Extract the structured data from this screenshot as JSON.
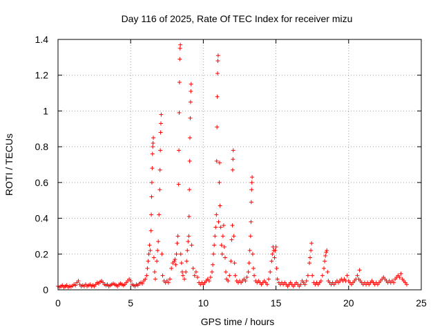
{
  "chart_data": {
    "type": "scatter",
    "title": "Day 116 of 2025, Rate Of TEC Index for receiver mizu",
    "xlabel": "GPS time / hours",
    "ylabel": "ROTI / TECUs",
    "xlim": [
      0,
      25
    ],
    "ylim": [
      0,
      1.4
    ],
    "xticks": [
      0,
      5,
      10,
      15,
      20,
      25
    ],
    "xtick_labels": [
      "0",
      "5",
      "10",
      "15",
      "20",
      "25"
    ],
    "yticks": [
      0,
      0.2,
      0.4,
      0.6,
      0.8,
      1,
      1.2,
      1.4
    ],
    "ytick_labels": [
      "0",
      "0.2",
      "0.4",
      "0.6",
      "0.8",
      "1",
      "1.2",
      "1.4"
    ],
    "grid": true,
    "marker": "plus",
    "color": "#ff0000",
    "series": [
      {
        "name": "ROTI",
        "points": [
          [
            0.0,
            0.02
          ],
          [
            0.1,
            0.015
          ],
          [
            0.2,
            0.02
          ],
          [
            0.3,
            0.025
          ],
          [
            0.4,
            0.015
          ],
          [
            0.5,
            0.02
          ],
          [
            0.6,
            0.025
          ],
          [
            0.7,
            0.015
          ],
          [
            0.8,
            0.02
          ],
          [
            0.9,
            0.018
          ],
          [
            1.0,
            0.022
          ],
          [
            1.1,
            0.03
          ],
          [
            1.2,
            0.025
          ],
          [
            1.3,
            0.04
          ],
          [
            1.4,
            0.05
          ],
          [
            1.5,
            0.03
          ],
          [
            1.6,
            0.02
          ],
          [
            1.7,
            0.025
          ],
          [
            1.8,
            0.02
          ],
          [
            1.9,
            0.03
          ],
          [
            2.0,
            0.02
          ],
          [
            2.1,
            0.025
          ],
          [
            2.2,
            0.03
          ],
          [
            2.3,
            0.02
          ],
          [
            2.4,
            0.025
          ],
          [
            2.5,
            0.02
          ],
          [
            2.6,
            0.03
          ],
          [
            2.7,
            0.04
          ],
          [
            2.8,
            0.035
          ],
          [
            2.9,
            0.045
          ],
          [
            3.0,
            0.05
          ],
          [
            3.1,
            0.04
          ],
          [
            3.2,
            0.03
          ],
          [
            3.3,
            0.025
          ],
          [
            3.4,
            0.03
          ],
          [
            3.5,
            0.02
          ],
          [
            3.6,
            0.025
          ],
          [
            3.7,
            0.03
          ],
          [
            3.8,
            0.035
          ],
          [
            3.9,
            0.03
          ],
          [
            4.0,
            0.025
          ],
          [
            4.1,
            0.02
          ],
          [
            4.2,
            0.03
          ],
          [
            4.3,
            0.035
          ],
          [
            4.4,
            0.03
          ],
          [
            4.5,
            0.025
          ],
          [
            4.6,
            0.03
          ],
          [
            4.7,
            0.04
          ],
          [
            4.8,
            0.05
          ],
          [
            4.9,
            0.06
          ],
          [
            5.0,
            0.05
          ],
          [
            5.1,
            0.03
          ],
          [
            5.2,
            0.025
          ],
          [
            5.3,
            0.02
          ],
          [
            5.4,
            0.03
          ],
          [
            5.5,
            0.025
          ],
          [
            5.6,
            0.035
          ],
          [
            5.7,
            0.04
          ],
          [
            5.8,
            0.035
          ],
          [
            5.9,
            0.05
          ],
          [
            6.0,
            0.06
          ],
          [
            6.1,
            0.08
          ],
          [
            6.15,
            0.12
          ],
          [
            6.2,
            0.16
          ],
          [
            6.25,
            0.2
          ],
          [
            6.3,
            0.25
          ],
          [
            6.35,
            0.22
          ],
          [
            6.4,
            0.33
          ],
          [
            6.42,
            0.42
          ],
          [
            6.44,
            0.52
          ],
          [
            6.46,
            0.6
          ],
          [
            6.48,
            0.68
          ],
          [
            6.5,
            0.76
          ],
          [
            6.52,
            0.8
          ],
          [
            6.54,
            0.82
          ],
          [
            6.56,
            0.85
          ],
          [
            6.6,
            0.18
          ],
          [
            6.65,
            0.1
          ],
          [
            6.7,
            0.06
          ],
          [
            6.8,
            0.16
          ],
          [
            6.85,
            0.22
          ],
          [
            6.9,
            0.27
          ],
          [
            6.95,
            0.42
          ],
          [
            7.0,
            0.56
          ],
          [
            7.02,
            0.67
          ],
          [
            7.04,
            0.78
          ],
          [
            7.06,
            0.88
          ],
          [
            7.08,
            0.93
          ],
          [
            7.1,
            0.98
          ],
          [
            7.15,
            0.2
          ],
          [
            7.2,
            0.08
          ],
          [
            7.3,
            0.05
          ],
          [
            7.4,
            0.04
          ],
          [
            7.5,
            0.05
          ],
          [
            7.6,
            0.04
          ],
          [
            7.7,
            0.06
          ],
          [
            7.8,
            0.12
          ],
          [
            7.9,
            0.15
          ],
          [
            8.0,
            0.16
          ],
          [
            8.05,
            0.17
          ],
          [
            8.1,
            0.14
          ],
          [
            8.15,
            0.2
          ],
          [
            8.2,
            0.26
          ],
          [
            8.25,
            0.3
          ],
          [
            8.3,
            0.59
          ],
          [
            8.32,
            0.78
          ],
          [
            8.34,
            0.99
          ],
          [
            8.36,
            1.16
          ],
          [
            8.38,
            1.29
          ],
          [
            8.4,
            1.35
          ],
          [
            8.42,
            1.37
          ],
          [
            8.45,
            0.2
          ],
          [
            8.5,
            0.15
          ],
          [
            8.55,
            0.1
          ],
          [
            8.6,
            0.08
          ],
          [
            8.7,
            0.06
          ],
          [
            8.8,
            0.1
          ],
          [
            8.85,
            0.16
          ],
          [
            8.9,
            0.22
          ],
          [
            8.95,
            0.27
          ],
          [
            9.0,
            0.3
          ],
          [
            9.02,
            0.41
          ],
          [
            9.04,
            0.56
          ],
          [
            9.06,
            0.72
          ],
          [
            9.08,
            0.85
          ],
          [
            9.1,
            0.96
          ],
          [
            9.12,
            1.05
          ],
          [
            9.14,
            1.11
          ],
          [
            9.16,
            1.15
          ],
          [
            9.2,
            0.25
          ],
          [
            9.3,
            0.12
          ],
          [
            9.4,
            0.08
          ],
          [
            9.5,
            0.1
          ],
          [
            9.6,
            0.07
          ],
          [
            9.7,
            0.04
          ],
          [
            9.8,
            0.03
          ],
          [
            9.9,
            0.04
          ],
          [
            10.0,
            0.03
          ],
          [
            10.1,
            0.04
          ],
          [
            10.2,
            0.05
          ],
          [
            10.3,
            0.06
          ],
          [
            10.4,
            0.05
          ],
          [
            10.5,
            0.07
          ],
          [
            10.6,
            0.1
          ],
          [
            10.65,
            0.14
          ],
          [
            10.7,
            0.2
          ],
          [
            10.75,
            0.25
          ],
          [
            10.8,
            0.3
          ],
          [
            10.85,
            0.35
          ],
          [
            10.9,
            0.42
          ],
          [
            10.92,
            0.72
          ],
          [
            10.94,
            0.91
          ],
          [
            10.96,
            1.08
          ],
          [
            10.98,
            1.21
          ],
          [
            11.0,
            1.28
          ],
          [
            11.02,
            1.31
          ],
          [
            11.05,
            0.38
          ],
          [
            11.1,
            0.6
          ],
          [
            11.12,
            0.71
          ],
          [
            11.15,
            0.47
          ],
          [
            11.2,
            0.35
          ],
          [
            11.25,
            0.25
          ],
          [
            11.3,
            0.2
          ],
          [
            11.35,
            0.3
          ],
          [
            11.4,
            0.36
          ],
          [
            11.45,
            0.24
          ],
          [
            11.5,
            0.18
          ],
          [
            11.55,
            0.1
          ],
          [
            11.6,
            0.06
          ],
          [
            11.7,
            0.05
          ],
          [
            11.8,
            0.08
          ],
          [
            11.9,
            0.16
          ],
          [
            11.95,
            0.28
          ],
          [
            12.0,
            0.36
          ],
          [
            12.02,
            0.67
          ],
          [
            12.04,
            0.73
          ],
          [
            12.06,
            0.78
          ],
          [
            12.1,
            0.3
          ],
          [
            12.15,
            0.15
          ],
          [
            12.2,
            0.08
          ],
          [
            12.3,
            0.05
          ],
          [
            12.4,
            0.04
          ],
          [
            12.5,
            0.05
          ],
          [
            12.6,
            0.04
          ],
          [
            12.7,
            0.05
          ],
          [
            12.8,
            0.06
          ],
          [
            12.9,
            0.05
          ],
          [
            13.0,
            0.07
          ],
          [
            13.1,
            0.1
          ],
          [
            13.15,
            0.15
          ],
          [
            13.2,
            0.22
          ],
          [
            13.25,
            0.3
          ],
          [
            13.28,
            0.38
          ],
          [
            13.3,
            0.49
          ],
          [
            13.32,
            0.56
          ],
          [
            13.34,
            0.6
          ],
          [
            13.36,
            0.63
          ],
          [
            13.4,
            0.2
          ],
          [
            13.45,
            0.12
          ],
          [
            13.5,
            0.08
          ],
          [
            13.6,
            0.05
          ],
          [
            13.7,
            0.04
          ],
          [
            13.8,
            0.05
          ],
          [
            13.9,
            0.04
          ],
          [
            14.0,
            0.03
          ],
          [
            14.1,
            0.04
          ],
          [
            14.2,
            0.05
          ],
          [
            14.3,
            0.04
          ],
          [
            14.4,
            0.03
          ],
          [
            14.5,
            0.06
          ],
          [
            14.6,
            0.1
          ],
          [
            14.7,
            0.16
          ],
          [
            14.75,
            0.2
          ],
          [
            14.8,
            0.24
          ],
          [
            14.85,
            0.22
          ],
          [
            14.9,
            0.18
          ],
          [
            14.95,
            0.22
          ],
          [
            15.0,
            0.24
          ],
          [
            15.05,
            0.12
          ],
          [
            15.1,
            0.06
          ],
          [
            15.2,
            0.04
          ],
          [
            15.3,
            0.03
          ],
          [
            15.4,
            0.04
          ],
          [
            15.5,
            0.03
          ],
          [
            15.6,
            0.04
          ],
          [
            15.7,
            0.03
          ],
          [
            15.8,
            0.02
          ],
          [
            15.9,
            0.03
          ],
          [
            16.0,
            0.04
          ],
          [
            16.1,
            0.03
          ],
          [
            16.2,
            0.02
          ],
          [
            16.3,
            0.03
          ],
          [
            16.4,
            0.04
          ],
          [
            16.5,
            0.03
          ],
          [
            16.6,
            0.02
          ],
          [
            16.7,
            0.03
          ],
          [
            16.8,
            0.05
          ],
          [
            16.9,
            0.04
          ],
          [
            17.0,
            0.03
          ],
          [
            17.1,
            0.05
          ],
          [
            17.2,
            0.08
          ],
          [
            17.3,
            0.15
          ],
          [
            17.35,
            0.18
          ],
          [
            17.4,
            0.22
          ],
          [
            17.45,
            0.26
          ],
          [
            17.5,
            0.08
          ],
          [
            17.6,
            0.04
          ],
          [
            17.7,
            0.03
          ],
          [
            17.8,
            0.04
          ],
          [
            17.9,
            0.03
          ],
          [
            18.0,
            0.04
          ],
          [
            18.1,
            0.05
          ],
          [
            18.2,
            0.08
          ],
          [
            18.3,
            0.12
          ],
          [
            18.35,
            0.16
          ],
          [
            18.4,
            0.19
          ],
          [
            18.45,
            0.21
          ],
          [
            18.5,
            0.22
          ],
          [
            18.55,
            0.1
          ],
          [
            18.6,
            0.05
          ],
          [
            18.7,
            0.04
          ],
          [
            18.8,
            0.03
          ],
          [
            18.9,
            0.04
          ],
          [
            19.0,
            0.03
          ],
          [
            19.1,
            0.04
          ],
          [
            19.2,
            0.05
          ],
          [
            19.3,
            0.04
          ],
          [
            19.4,
            0.05
          ],
          [
            19.5,
            0.06
          ],
          [
            19.6,
            0.05
          ],
          [
            19.7,
            0.06
          ],
          [
            19.8,
            0.05
          ],
          [
            19.9,
            0.08
          ],
          [
            20.0,
            0.05
          ],
          [
            20.1,
            0.04
          ],
          [
            20.2,
            0.03
          ],
          [
            20.3,
            0.04
          ],
          [
            20.4,
            0.05
          ],
          [
            20.5,
            0.06
          ],
          [
            20.6,
            0.08
          ],
          [
            20.7,
            0.06
          ],
          [
            20.75,
            0.11
          ],
          [
            20.8,
            0.05
          ],
          [
            20.9,
            0.04
          ],
          [
            21.0,
            0.03
          ],
          [
            21.1,
            0.04
          ],
          [
            21.2,
            0.03
          ],
          [
            21.3,
            0.04
          ],
          [
            21.4,
            0.03
          ],
          [
            21.5,
            0.04
          ],
          [
            21.6,
            0.05
          ],
          [
            21.7,
            0.04
          ],
          [
            21.8,
            0.03
          ],
          [
            21.9,
            0.04
          ],
          [
            22.0,
            0.03
          ],
          [
            22.1,
            0.04
          ],
          [
            22.2,
            0.05
          ],
          [
            22.3,
            0.06
          ],
          [
            22.4,
            0.07
          ],
          [
            22.5,
            0.06
          ],
          [
            22.6,
            0.05
          ],
          [
            22.7,
            0.04
          ],
          [
            22.8,
            0.05
          ],
          [
            22.9,
            0.04
          ],
          [
            23.0,
            0.05
          ],
          [
            23.1,
            0.04
          ],
          [
            23.2,
            0.06
          ],
          [
            23.3,
            0.07
          ],
          [
            23.4,
            0.08
          ],
          [
            23.5,
            0.07
          ],
          [
            23.6,
            0.09
          ],
          [
            23.7,
            0.06
          ],
          [
            23.8,
            0.05
          ],
          [
            23.9,
            0.04
          ],
          [
            24.0,
            0.03
          ]
        ]
      }
    ]
  }
}
